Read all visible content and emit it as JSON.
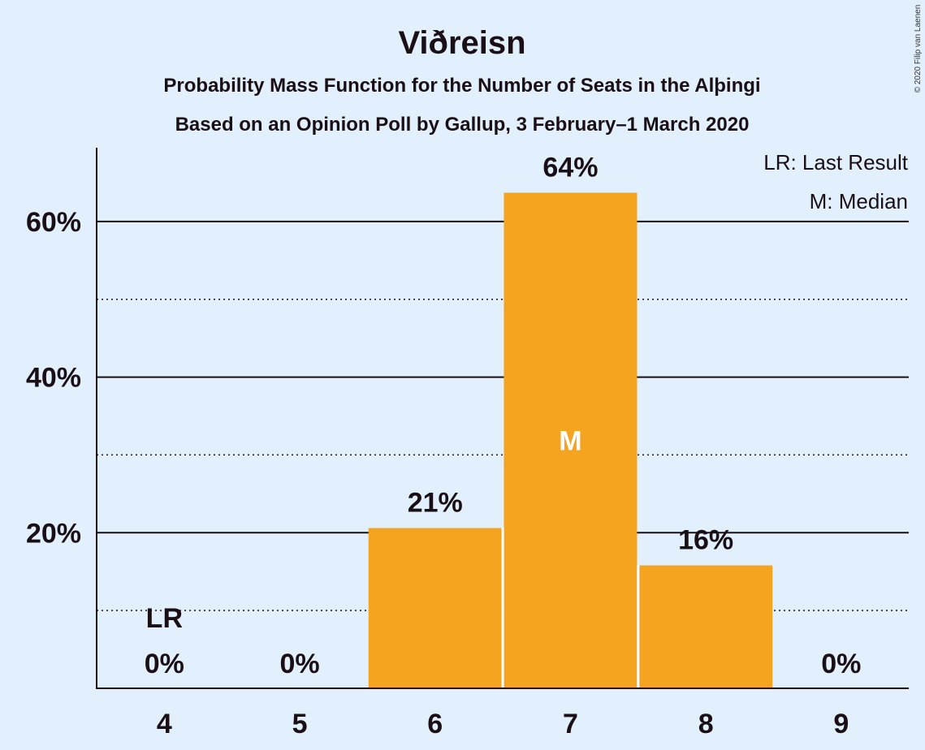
{
  "chart_data": {
    "type": "bar",
    "title": "Viðreisn",
    "subtitle": "Probability Mass Function for the Number of Seats in the Alþingi",
    "subtitle2": "Based on an Opinion Poll by Gallup, 3 February–1 March 2020",
    "copyright": "© 2020 Filip van Laenen",
    "categories": [
      "4",
      "5",
      "6",
      "7",
      "8",
      "9"
    ],
    "values": [
      0,
      0,
      20.6,
      63.7,
      15.8,
      0
    ],
    "value_labels": [
      "0%",
      "0%",
      "21%",
      "64%",
      "16%",
      "0%"
    ],
    "ylim": [
      0,
      70
    ],
    "yticks": [
      20,
      40,
      60
    ],
    "ytick_labels": [
      "20%",
      "40%",
      "60%"
    ],
    "minor_gridlines": [
      10,
      30,
      50
    ],
    "last_result_category": "4",
    "last_result_marker": "LR",
    "median_category": "7",
    "median_marker": "M",
    "legend": [
      "LR: Last Result",
      "M: Median"
    ],
    "legend_position": "top-right",
    "bar_color": "#f4a41f",
    "background_color": "#e2f0fd"
  }
}
